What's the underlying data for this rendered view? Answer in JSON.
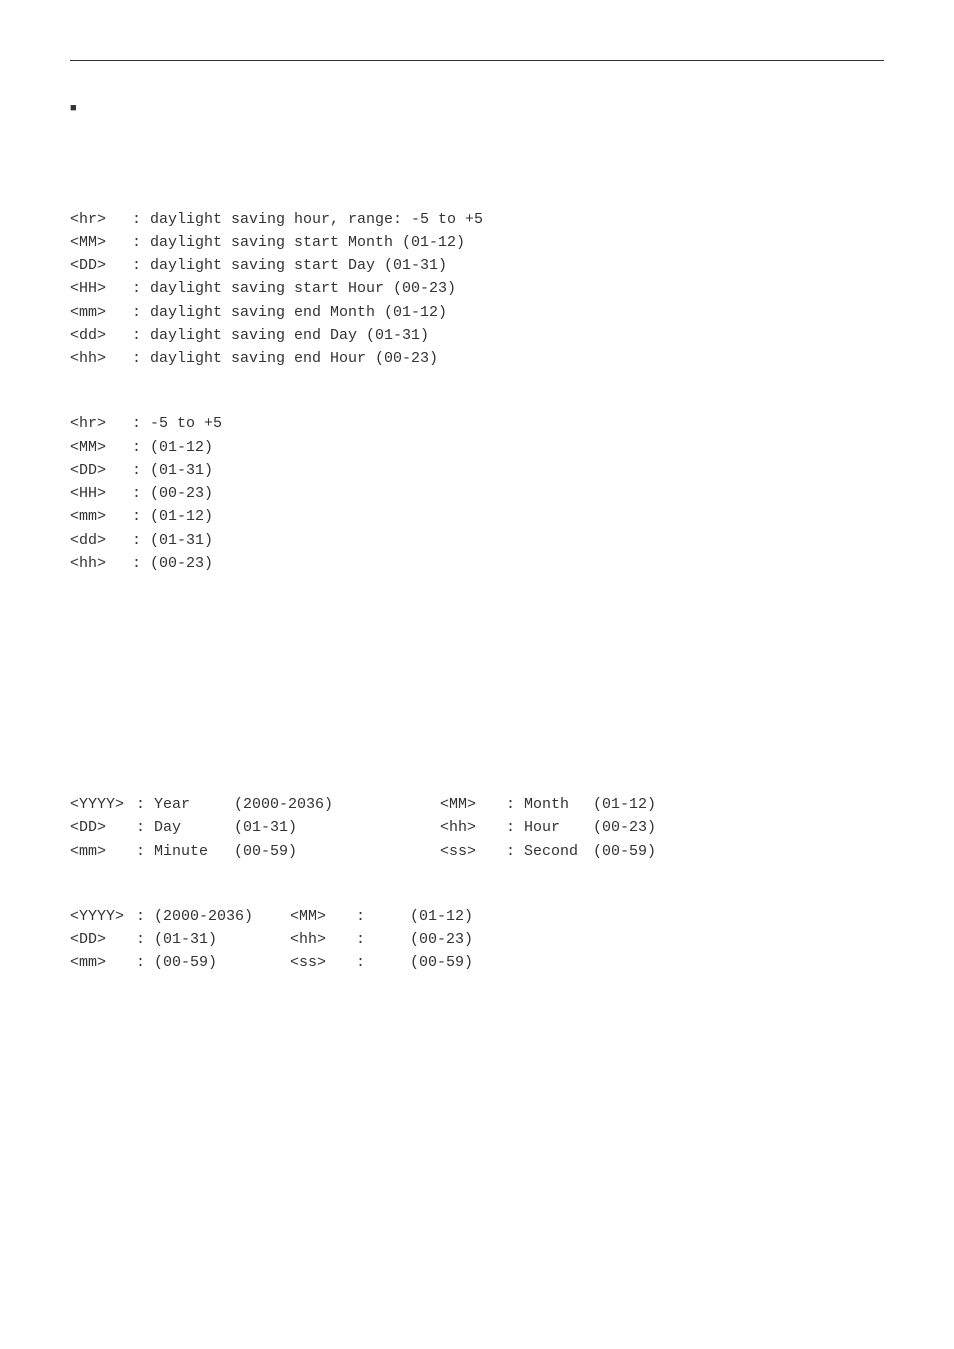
{
  "bullet_glyph": "■",
  "defs1": [
    {
      "tag": "<hr>",
      "desc": "daylight saving hour, range: -5 to +5"
    },
    {
      "tag": "<MM>",
      "desc": "daylight saving start Month (01-12)"
    },
    {
      "tag": "<DD>",
      "desc": "daylight saving start Day (01-31)"
    },
    {
      "tag": "<HH>",
      "desc": "daylight saving start Hour (00-23)"
    },
    {
      "tag": "<mm>",
      "desc": "daylight saving end Month (01-12)"
    },
    {
      "tag": "<dd>",
      "desc": "daylight saving end Day (01-31)"
    },
    {
      "tag": "<hh>",
      "desc": "daylight saving end Hour (00-23)"
    }
  ],
  "defs2": [
    {
      "tag": "<hr>",
      "desc": "-5 to +5"
    },
    {
      "tag": "<MM>",
      "desc": "(01-12)"
    },
    {
      "tag": "<DD>",
      "desc": "(01-31)"
    },
    {
      "tag": "<HH>",
      "desc": "(00-23)"
    },
    {
      "tag": "<mm>",
      "desc": "(01-12)"
    },
    {
      "tag": "<dd>",
      "desc": "(01-31)"
    },
    {
      "tag": "<hh>",
      "desc": "(00-23)"
    }
  ],
  "date_defs_left": [
    {
      "tag": "<YYYY>",
      "label": "Year",
      "range": "(2000-2036)"
    },
    {
      "tag": "<DD>",
      "label": "Day",
      "range": "(01-31)"
    },
    {
      "tag": "<mm>",
      "label": "Minute",
      "range": "(00-59)"
    }
  ],
  "date_defs_right": [
    {
      "tag": "<MM>",
      "label": "Month",
      "range": "(01-12)"
    },
    {
      "tag": "<hh>",
      "label": "Hour",
      "range": "(00-23)"
    },
    {
      "tag": "<ss>",
      "label": "Second",
      "range": "(00-59)"
    }
  ],
  "date_ranges_left": [
    {
      "tag": "<YYYY>",
      "range": "(2000-2036)"
    },
    {
      "tag": "<DD>",
      "range": "(01-31)"
    },
    {
      "tag": "<mm>",
      "range": "(00-59)"
    }
  ],
  "date_ranges_right": [
    {
      "tag": "<MM>",
      "range": "(01-12)"
    },
    {
      "tag": "<hh>",
      "range": "(00-23)"
    },
    {
      "tag": "<ss>",
      "range": "(00-59)"
    }
  ],
  "colors": {
    "text": "#333333",
    "background": "#ffffff",
    "rule": "#333333"
  },
  "typography": {
    "font_family": "SimSun / monospace",
    "font_size_pt": 11,
    "line_height": 1.55
  }
}
